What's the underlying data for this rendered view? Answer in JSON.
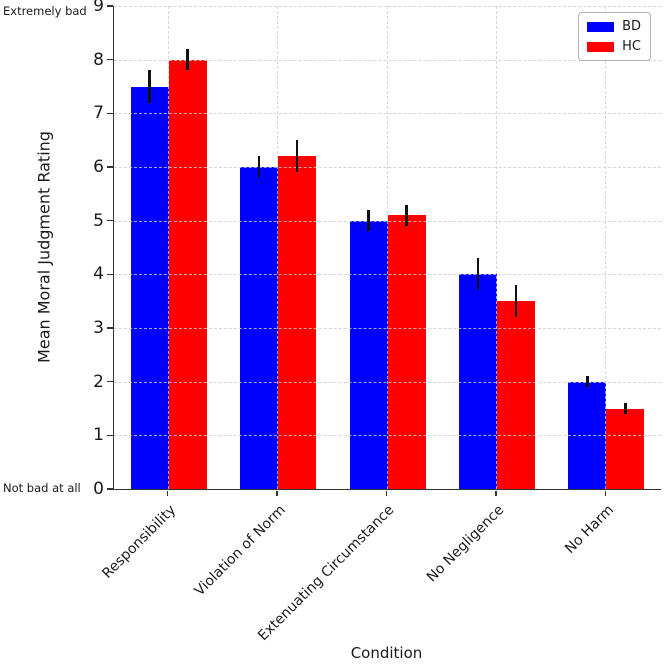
{
  "chart_data": {
    "type": "bar",
    "title": "",
    "xlabel": "Condition",
    "ylabel": "Mean Moral Judgment Rating",
    "ylim": [
      0,
      9
    ],
    "yticks": [
      0,
      1,
      2,
      3,
      4,
      5,
      6,
      7,
      8,
      9
    ],
    "grid": "dashed, horizontal at integers and vertical at category centers",
    "legend_position": "upper right",
    "y_extreme_labels": {
      "top": "Extremely bad",
      "bottom": "Not bad at all"
    },
    "categories": [
      "Responsibility",
      "Violation of Norm",
      "Extenuating Circumstance",
      "No Negligence",
      "No Harm"
    ],
    "series": [
      {
        "name": "BD",
        "color": "#0000ff",
        "values": [
          7.5,
          6.0,
          5.0,
          4.0,
          2.0
        ],
        "errors": [
          0.3,
          0.2,
          0.2,
          0.3,
          0.1
        ]
      },
      {
        "name": "HC",
        "color": "#ff0000",
        "values": [
          8.0,
          6.2,
          5.1,
          3.5,
          1.5
        ],
        "errors": [
          0.2,
          0.3,
          0.2,
          0.3,
          0.1
        ]
      }
    ],
    "colors": {
      "bar_bd": "#0000ff",
      "bar_hc": "#ff0000",
      "error_bar": "#111111",
      "grid": "#cccccc",
      "spine": "#333333",
      "text": "#1a1a1a",
      "legend_border": "#b3b3b3"
    }
  }
}
